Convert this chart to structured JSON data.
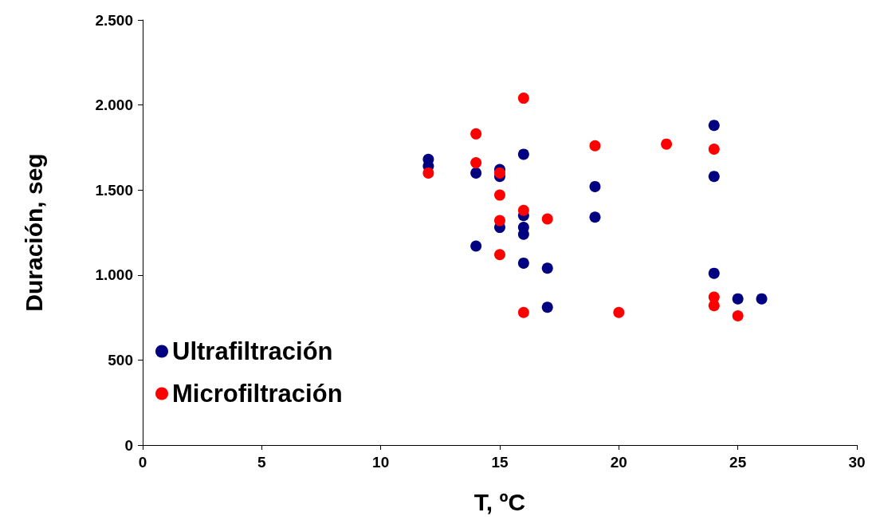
{
  "chart_data": {
    "type": "scatter",
    "xlabel": "T, ºC",
    "ylabel": "Duración, seg",
    "xlim": [
      0,
      30
    ],
    "xticks": [
      0,
      5,
      10,
      15,
      20,
      25,
      30
    ],
    "ylim": [
      0,
      2500
    ],
    "yticks": [
      0,
      500,
      {
        "value": 1000,
        "label": "1.000"
      },
      {
        "value": 1500,
        "label": "1.500"
      },
      {
        "value": 2000,
        "label": "2.000"
      },
      {
        "value": 2500,
        "label": "2.500"
      }
    ],
    "grid": false,
    "legend": "bottom left",
    "marker": "circle",
    "series": [
      {
        "name": "Ultrafiltración",
        "color": "#000080",
        "x": [
          12,
          12,
          14,
          14,
          15,
          15,
          15,
          16,
          16,
          16,
          16,
          16,
          17,
          17,
          19,
          19,
          24,
          24,
          24,
          25,
          26
        ],
        "values": [
          1680,
          1640,
          1600,
          1170,
          1620,
          1580,
          1280,
          1710,
          1350,
          1280,
          1240,
          1070,
          1040,
          810,
          1520,
          1340,
          1880,
          1580,
          1010,
          860,
          860
        ]
      },
      {
        "name": "Microfiltración",
        "color": "#ff0000",
        "x": [
          12,
          14,
          14,
          15,
          15,
          15,
          15,
          16,
          16,
          16,
          17,
          19,
          20,
          22,
          24,
          24,
          24,
          25
        ],
        "values": [
          1600,
          1830,
          1660,
          1600,
          1470,
          1320,
          1120,
          2040,
          1380,
          780,
          1330,
          1760,
          780,
          1770,
          1740,
          870,
          820,
          760
        ]
      }
    ]
  }
}
